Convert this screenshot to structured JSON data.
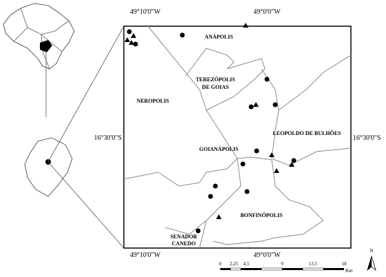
{
  "coordinates": {
    "top_left": "49°10'0\"W",
    "top_right": "49°0'0\"W",
    "bottom_left": "49°10'0\"W",
    "bottom_right": "49°0'0\"W",
    "left": "16°30'0\"S",
    "right": "16°30'0\"S"
  },
  "places": [
    "ANÁPOLIS",
    "TEREZÓPOLIS",
    "DE GOIAS",
    "NEROPOLIS",
    "LEOPOLDO DE BULHÕES",
    "GOIANÁPOLIS",
    "BONFINÓPOLIS",
    "SENADOR",
    "CANEDO"
  ],
  "scale_bar": {
    "labels": [
      "0",
      "2,25",
      "4,5",
      "9",
      "13,5",
      "18"
    ],
    "unit": "Km"
  },
  "north": "N"
}
